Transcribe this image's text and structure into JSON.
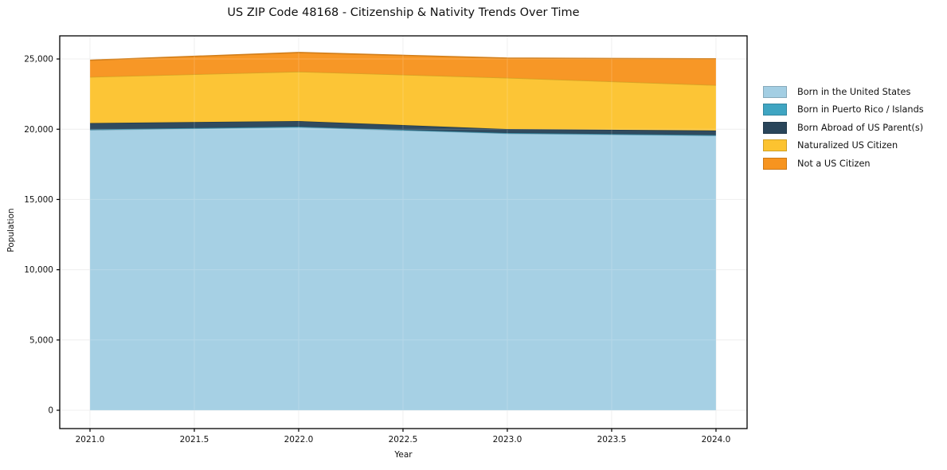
{
  "chart_data": {
    "type": "area",
    "stacked": true,
    "title": "US ZIP Code 48168 - Citizenship & Nativity Trends Over Time",
    "xlabel": "Year",
    "ylabel": "Population",
    "x": [
      2021,
      2022,
      2023,
      2024
    ],
    "series": [
      {
        "name": "Born in the United States",
        "color": "#a3cee3",
        "values": [
          19950,
          20150,
          19700,
          19550
        ]
      },
      {
        "name": "Born in Puerto Rico / Islands",
        "color": "#3fa5c2",
        "values": [
          30,
          30,
          30,
          30
        ]
      },
      {
        "name": "Born Abroad of US Parent(s)",
        "color": "#29455a",
        "values": [
          460,
          400,
          280,
          330
        ]
      },
      {
        "name": "Naturalized US Citizen",
        "color": "#fcc330",
        "values": [
          3280,
          3520,
          3650,
          3230
        ]
      },
      {
        "name": "Not a US Citizen",
        "color": "#f7941f",
        "values": [
          1190,
          1360,
          1400,
          1870
        ]
      }
    ],
    "stack_totals": [
      24910,
      25460,
      25060,
      25010
    ],
    "xlim": [
      2020.855,
      2024.149
    ],
    "ylim": [
      -1304,
      26646
    ],
    "x_ticks": [
      {
        "v": 2021.0,
        "label": "2021.0"
      },
      {
        "v": 2021.5,
        "label": "2021.5"
      },
      {
        "v": 2022.0,
        "label": "2022.0"
      },
      {
        "v": 2022.5,
        "label": "2022.5"
      },
      {
        "v": 2023.0,
        "label": "2023.0"
      },
      {
        "v": 2023.5,
        "label": "2023.5"
      },
      {
        "v": 2024.0,
        "label": "2024.0"
      }
    ],
    "y_ticks": [
      {
        "v": 0,
        "label": "0"
      },
      {
        "v": 5000,
        "label": "5,000"
      },
      {
        "v": 10000,
        "label": "10,000"
      },
      {
        "v": 15000,
        "label": "15,000"
      },
      {
        "v": 20000,
        "label": "20,000"
      },
      {
        "v": 25000,
        "label": "25,000"
      }
    ],
    "grid": true,
    "grid_color": "#ececec",
    "spine_color": "#000000",
    "legend_position": "right"
  }
}
